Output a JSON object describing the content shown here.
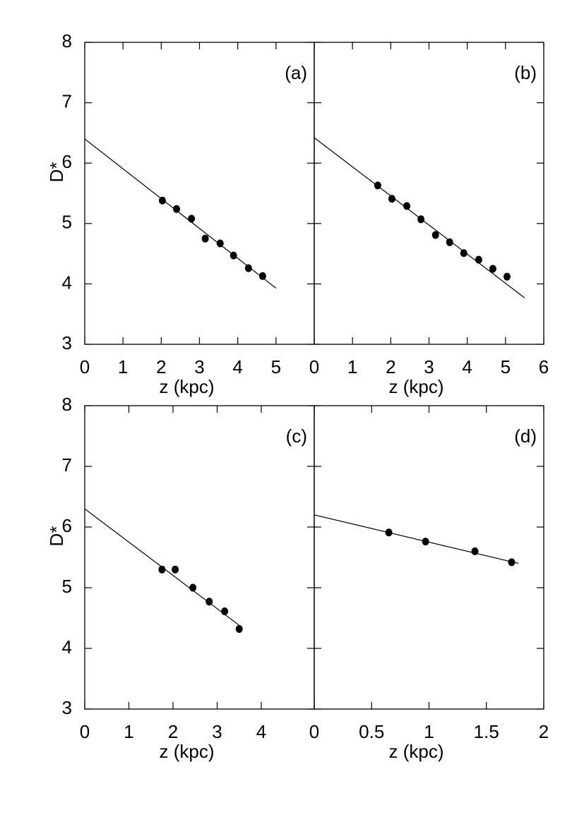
{
  "chart_data": [
    {
      "type": "scatter",
      "label": "(a)",
      "xlabel": "z (kpc)",
      "ylabel": "D*",
      "color": "#000000",
      "x": [
        2.03,
        2.4,
        2.79,
        3.15,
        3.54,
        3.89,
        4.28,
        4.65
      ],
      "values": [
        5.38,
        5.24,
        5.08,
        4.75,
        4.67,
        4.47,
        4.26,
        4.13
      ],
      "fit": {
        "x": [
          0,
          5
        ],
        "values": [
          6.4,
          3.93
        ]
      },
      "xlim": [
        0,
        6
      ],
      "xticks": [
        0,
        1,
        2,
        3,
        4,
        5
      ],
      "ylim": [
        3,
        8
      ],
      "yticks": [
        3,
        4,
        5,
        6,
        7,
        8
      ]
    },
    {
      "type": "scatter",
      "label": "(b)",
      "xlabel": "z (kpc)",
      "color": "#000000",
      "x": [
        1.66,
        2.03,
        2.42,
        2.79,
        3.17,
        3.54,
        3.91,
        4.3,
        4.67,
        5.04
      ],
      "values": [
        5.63,
        5.41,
        5.29,
        5.07,
        4.81,
        4.69,
        4.51,
        4.4,
        4.25,
        4.12
      ],
      "fit": {
        "x": [
          0,
          5.5
        ],
        "values": [
          6.42,
          3.77
        ]
      },
      "xlim": [
        0,
        6
      ],
      "xticks": [
        0,
        1,
        2,
        3,
        4,
        5,
        6
      ],
      "ylim": [
        3,
        8
      ],
      "yticks": [
        3,
        4,
        5,
        6,
        7,
        8
      ]
    },
    {
      "type": "scatter",
      "label": "(c)",
      "xlabel": "z (kpc)",
      "ylabel": "D*",
      "color": "#000000",
      "x": [
        1.75,
        2.05,
        2.45,
        2.82,
        3.17,
        3.5
      ],
      "values": [
        5.3,
        5.3,
        5.0,
        4.77,
        4.61,
        4.32
      ],
      "fit": {
        "x": [
          0,
          3.5
        ],
        "values": [
          6.3,
          4.38
        ]
      },
      "xlim": [
        0,
        5.2
      ],
      "xticks": [
        0,
        1,
        2,
        3,
        4
      ],
      "ylim": [
        3,
        8
      ],
      "yticks": [
        3,
        4,
        5,
        6,
        7,
        8
      ]
    },
    {
      "type": "scatter",
      "label": "(d)",
      "xlabel": "z (kpc)",
      "color": "#000000",
      "x": [
        0.65,
        0.97,
        1.4,
        1.72
      ],
      "values": [
        5.91,
        5.76,
        5.6,
        5.42
      ],
      "fit": {
        "x": [
          0,
          1.78
        ],
        "values": [
          6.2,
          5.4
        ]
      },
      "xlim": [
        0,
        2
      ],
      "xticks": [
        0,
        0.5,
        1,
        1.5,
        2
      ],
      "ylim": [
        3,
        8
      ],
      "yticks": [
        3,
        4,
        5,
        6,
        7,
        8
      ]
    }
  ]
}
